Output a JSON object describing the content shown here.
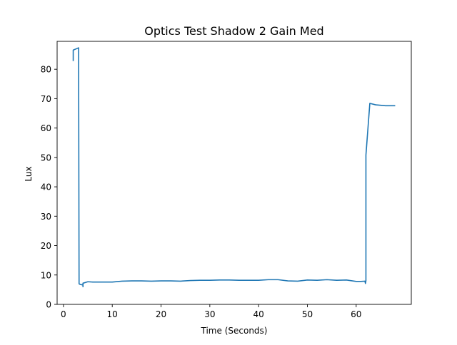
{
  "chart_data": {
    "type": "line",
    "title": "Optics Test Shadow 2 Gain Med",
    "xlabel": "Time (Seconds)",
    "ylabel": "Lux",
    "xlim": [
      -1.3,
      71.3
    ],
    "ylim": [
      0,
      89.5
    ],
    "xticks": [
      0,
      10,
      20,
      30,
      40,
      50,
      60
    ],
    "yticks": [
      0,
      10,
      20,
      30,
      40,
      50,
      60,
      70,
      80
    ],
    "grid": false,
    "series": [
      {
        "color": "#1f77b4",
        "x": [
          2.0,
          2.0,
          2.0,
          2.1,
          3.1,
          3.2,
          3.4,
          4.0,
          4.0,
          4.0,
          5.0,
          6.0,
          8.0,
          10.0,
          12.0,
          14.0,
          16.0,
          18.0,
          20.0,
          22.0,
          24.0,
          26.0,
          28.0,
          30.0,
          32.0,
          34.0,
          36.0,
          38.0,
          40.0,
          42.0,
          44.0,
          46.0,
          48.0,
          50.0,
          52.0,
          54.0,
          56.0,
          58.0,
          60.0,
          61.0,
          61.8,
          61.9,
          62.0,
          62.0,
          62.8,
          64.0,
          66.0,
          68.0
        ],
        "y": [
          82.8,
          84.6,
          86.5,
          86.6,
          87.3,
          7.0,
          6.8,
          6.6,
          6.0,
          7.2,
          7.7,
          7.6,
          7.6,
          7.6,
          7.9,
          8.0,
          8.0,
          7.9,
          8.0,
          8.0,
          7.9,
          8.1,
          8.2,
          8.2,
          8.3,
          8.3,
          8.2,
          8.2,
          8.2,
          8.4,
          8.4,
          8.0,
          7.9,
          8.3,
          8.2,
          8.4,
          8.2,
          8.3,
          7.8,
          7.8,
          7.9,
          7.1,
          8.0,
          50.8,
          68.4,
          67.9,
          67.6,
          67.6
        ]
      }
    ]
  }
}
